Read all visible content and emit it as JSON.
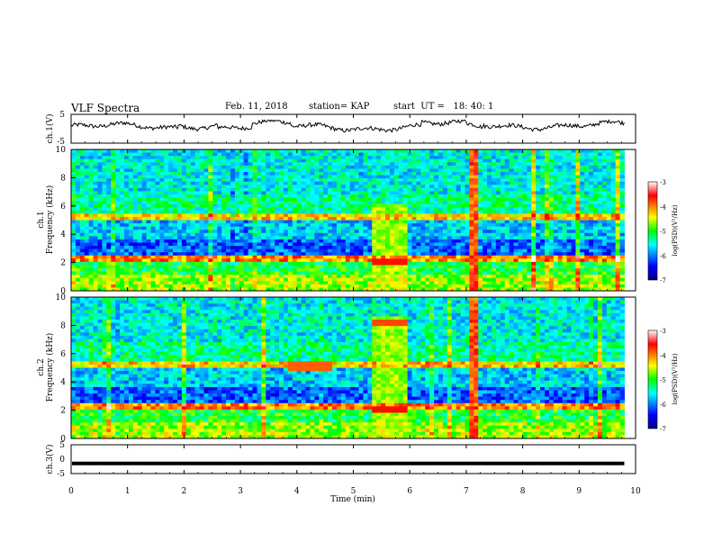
{
  "header": {
    "title": "VLF Spectra",
    "date": "Feb. 11, 2018",
    "station": "station= KAP",
    "start_time": "start  UT =   18: 40: 1"
  },
  "chart_data": [
    {
      "type": "line",
      "panel": "ch.1 voltage",
      "ylabel": "ch.1(V)",
      "ylim": [
        -5,
        5
      ],
      "yticks": [
        "5",
        "-5"
      ],
      "x_range_min": [
        0,
        9.8
      ],
      "y_approx_range": [
        -1.5,
        3
      ]
    },
    {
      "type": "heatmap",
      "panel": "ch.1 spectrogram",
      "ylabel": "ch.1\nFrequency (kHz)",
      "ylim": [
        0,
        10
      ],
      "yticks": [
        "0",
        "2",
        "4",
        "6",
        "8",
        "10"
      ],
      "colorbar": {
        "label": "log(PSD)(V²/Hz)",
        "range": [
          -7,
          -3
        ],
        "ticks": [
          "-3",
          "-4",
          "-5",
          "-6",
          "-7"
        ]
      },
      "notable_features": [
        "broadband burst at about 5.3–5.9 min",
        "strong broadband impulse near 7.1 min"
      ]
    },
    {
      "type": "heatmap",
      "panel": "ch.2 spectrogram",
      "ylabel": "ch.2\nFrequency (kHz)",
      "ylim": [
        0,
        10
      ],
      "yticks": [
        "0",
        "2",
        "4",
        "6",
        "8",
        "10"
      ],
      "colorbar": {
        "label": "log(PSD)(V²/Hz)",
        "range": [
          -7,
          -3
        ],
        "ticks": [
          "-3",
          "-4",
          "-5",
          "-6",
          "-7"
        ]
      },
      "notable_features": [
        "broadband burst at about 5.3–5.9 min",
        "strong broadband impulse near 7.1 min",
        "tone near 5 kHz around 3.8–4.6 min"
      ]
    },
    {
      "type": "line",
      "panel": "ch.3 voltage",
      "ylabel": "ch.3(V)",
      "ylim": [
        -5,
        5
      ],
      "yticks": [
        "5",
        "0",
        "-5"
      ],
      "constant_value": -1.5
    }
  ],
  "x_axis": {
    "label": "Time (min)",
    "xlim": [
      0,
      10
    ],
    "ticks": [
      "0",
      "1",
      "2",
      "3",
      "4",
      "5",
      "6",
      "7",
      "8",
      "9",
      "10"
    ]
  }
}
